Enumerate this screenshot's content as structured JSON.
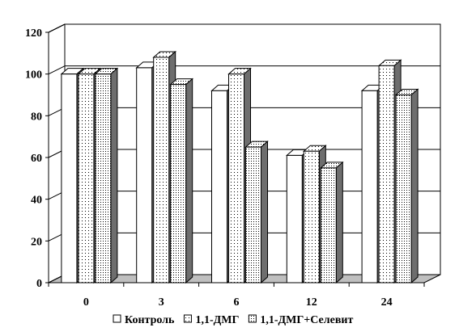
{
  "chart_data": {
    "type": "bar",
    "categories": [
      "0",
      "3",
      "6",
      "12",
      "24"
    ],
    "series": [
      {
        "name": "Контроль",
        "values": [
          100,
          103,
          92,
          61,
          92
        ],
        "pattern": "plain"
      },
      {
        "name": "1,1-ДМГ",
        "values": [
          100,
          108,
          100,
          63,
          104
        ],
        "pattern": "sparse-dots"
      },
      {
        "name": "1,1-ДМГ+Селевит",
        "values": [
          100,
          95,
          65,
          55,
          90
        ],
        "pattern": "dense-dots"
      }
    ],
    "y_ticks": [
      "0",
      "20",
      "40",
      "60",
      "80",
      "100",
      "120"
    ],
    "ylim": [
      0,
      120
    ],
    "grid": true,
    "legend_position": "bottom",
    "style": "3d-bars",
    "colors": {
      "bar_face": "#ffffff",
      "bar_side": "#6e6e6e",
      "floor": "#bfbfbf",
      "stroke": "#000000"
    }
  }
}
